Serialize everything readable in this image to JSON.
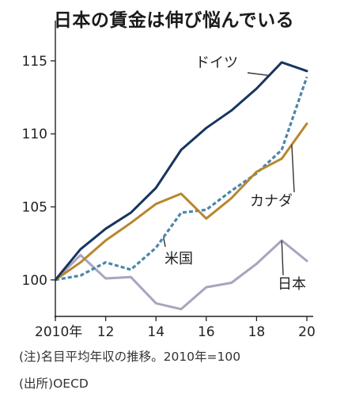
{
  "chart_data": {
    "type": "line",
    "title": "日本の賃金は伸び悩んでいる",
    "x": [
      2010,
      2011,
      2012,
      2013,
      2014,
      2015,
      2016,
      2017,
      2018,
      2019,
      2020
    ],
    "x_ticks": [
      2010,
      2012,
      2014,
      2016,
      2018,
      2020
    ],
    "x_tick_labels": [
      "2010年",
      "12",
      "14",
      "16",
      "18",
      "20"
    ],
    "ylim": [
      97.5,
      117
    ],
    "y_ticks": [
      100,
      105,
      110,
      115
    ],
    "y_tick_labels": [
      "100",
      "105",
      "110",
      "115"
    ],
    "grid": false,
    "series": [
      {
        "name": "ドイツ",
        "color": "#17355e",
        "style": "solid",
        "values": [
          100,
          102.1,
          103.5,
          104.6,
          106.3,
          108.9,
          110.4,
          111.6,
          113.1,
          114.9,
          114.3
        ]
      },
      {
        "name": "カナダ",
        "color": "#b8862e",
        "style": "solid",
        "values": [
          100,
          101.2,
          102.7,
          103.9,
          105.2,
          105.9,
          104.2,
          105.6,
          107.4,
          108.3,
          110.7
        ]
      },
      {
        "name": "米国",
        "color": "#4a86a8",
        "style": "dotted",
        "values": [
          100,
          100.3,
          101.2,
          100.7,
          102.2,
          104.6,
          104.8,
          106.1,
          107.3,
          108.9,
          113.9
        ]
      },
      {
        "name": "日本",
        "color": "#a9a4bf",
        "style": "solid",
        "values": [
          100,
          101.7,
          100.1,
          100.2,
          98.4,
          98,
          99.5,
          99.8,
          101.1,
          102.7,
          101.3
        ]
      }
    ],
    "notes": [
      "(注)名目平均年収の推移。2010年=100",
      "(出所)OECD"
    ]
  }
}
